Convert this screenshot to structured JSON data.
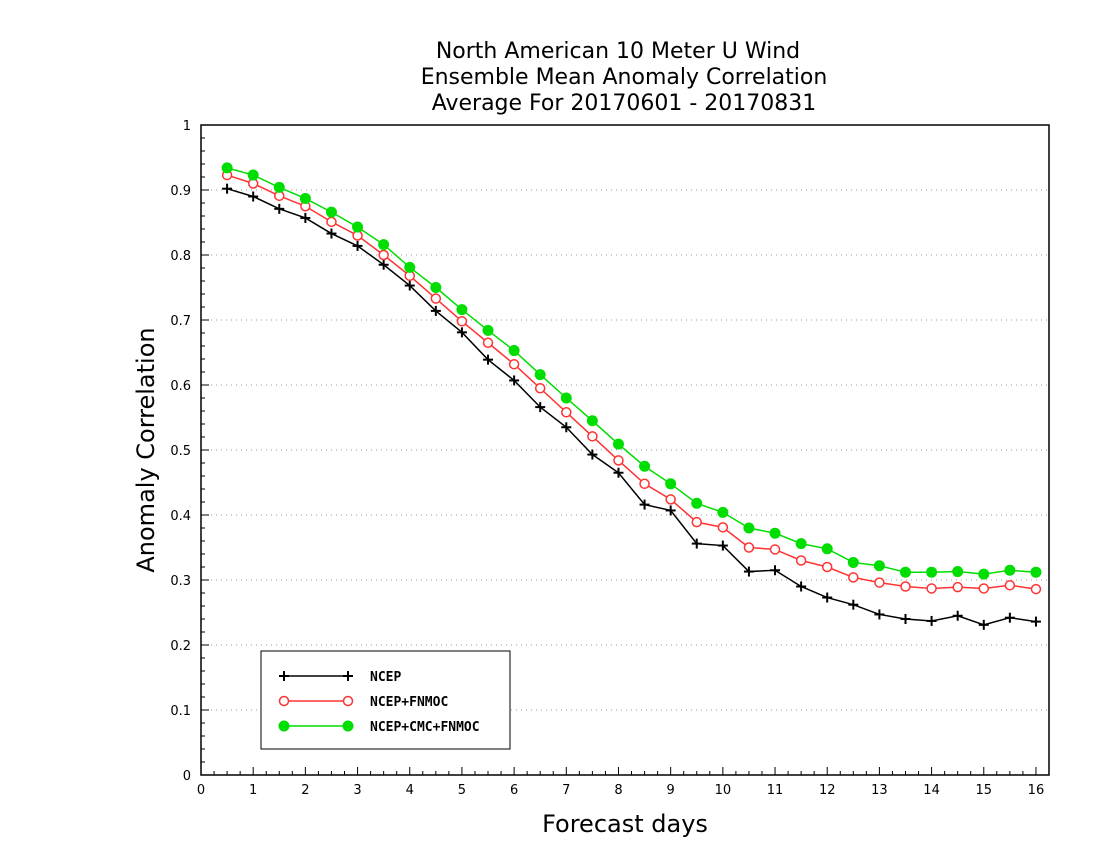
{
  "chart_data": {
    "type": "line",
    "title": [
      "North American 10 Meter U Wind",
      "Ensemble Mean Anomaly Correlation",
      "Average For 20170601 - 20170831"
    ],
    "xlabel": "Forecast days",
    "ylabel": "Anomaly Correlation",
    "xlim": [
      0,
      16.25
    ],
    "ylim": [
      0,
      1
    ],
    "x_ticks": [
      "0",
      "1",
      "2",
      "3",
      "4",
      "5",
      "6",
      "7",
      "8",
      "9",
      "10",
      "11",
      "12",
      "13",
      "14",
      "15",
      "16"
    ],
    "y_ticks": [
      "0",
      "0.1",
      "0.2",
      "0.3",
      "0.4",
      "0.5",
      "0.6",
      "0.7",
      "0.8",
      "0.9",
      "1"
    ],
    "grid": "horizontal dotted",
    "legend_position": "bottom-left",
    "x": [
      0.5,
      1,
      1.5,
      2,
      2.5,
      3,
      3.5,
      4,
      4.5,
      5,
      5.5,
      6,
      6.5,
      7,
      7.5,
      8,
      8.5,
      9,
      9.5,
      10,
      10.5,
      11,
      11.5,
      12,
      12.5,
      13,
      13.5,
      14,
      14.5,
      15,
      15.5,
      16
    ],
    "series": [
      {
        "name": "NCEP",
        "color": "#000000",
        "marker": "plus",
        "values": [
          0.902,
          0.89,
          0.871,
          0.857,
          0.833,
          0.814,
          0.785,
          0.753,
          0.714,
          0.681,
          0.639,
          0.607,
          0.566,
          0.535,
          0.493,
          0.465,
          0.416,
          0.407,
          0.356,
          0.353,
          0.313,
          0.315,
          0.29,
          0.273,
          0.262,
          0.247,
          0.24,
          0.237,
          0.245,
          0.231,
          0.242,
          0.236
        ]
      },
      {
        "name": "NCEP+FNMOC",
        "color": "#ff3333",
        "marker": "open-circle",
        "values": [
          0.923,
          0.91,
          0.891,
          0.875,
          0.851,
          0.83,
          0.8,
          0.768,
          0.733,
          0.698,
          0.665,
          0.632,
          0.595,
          0.558,
          0.521,
          0.484,
          0.448,
          0.424,
          0.389,
          0.381,
          0.35,
          0.347,
          0.33,
          0.32,
          0.304,
          0.296,
          0.29,
          0.287,
          0.289,
          0.287,
          0.292,
          0.286
        ]
      },
      {
        "name": "NCEP+CMC+FNMOC",
        "color": "#00dd00",
        "marker": "filled-circle",
        "values": [
          0.934,
          0.923,
          0.904,
          0.887,
          0.866,
          0.843,
          0.816,
          0.781,
          0.75,
          0.716,
          0.684,
          0.653,
          0.616,
          0.58,
          0.545,
          0.509,
          0.475,
          0.448,
          0.418,
          0.404,
          0.38,
          0.372,
          0.356,
          0.348,
          0.327,
          0.322,
          0.312,
          0.312,
          0.313,
          0.309,
          0.315,
          0.312
        ]
      }
    ]
  }
}
